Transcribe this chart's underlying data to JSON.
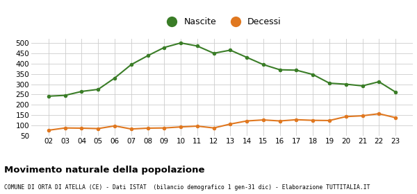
{
  "years": [
    "02",
    "03",
    "04",
    "05",
    "06",
    "07",
    "08",
    "09",
    "10",
    "11",
    "12",
    "13",
    "14",
    "15",
    "16",
    "17",
    "18",
    "19",
    "20",
    "21",
    "22",
    "23"
  ],
  "nascite": [
    242,
    246,
    265,
    275,
    330,
    395,
    438,
    478,
    500,
    485,
    450,
    465,
    430,
    395,
    370,
    368,
    347,
    305,
    300,
    292,
    312,
    262
  ],
  "decessi": [
    77,
    88,
    87,
    85,
    98,
    83,
    87,
    88,
    93,
    97,
    88,
    107,
    122,
    127,
    122,
    128,
    125,
    124,
    143,
    147,
    157,
    138
  ],
  "nascite_color": "#3a7d27",
  "decessi_color": "#e07820",
  "bg_color": "#ffffff",
  "grid_color": "#cccccc",
  "title": "Movimento naturale della popolazione",
  "subtitle": "COMUNE DI ORTA DI ATELLA (CE) - Dati ISTAT  (bilancio demografico 1 gen-31 dic) - Elaborazione TUTTITALIA.IT",
  "legend_nascite": "Nascite",
  "legend_decessi": "Decessi",
  "ylim": [
    50,
    520
  ],
  "yticks": [
    50,
    100,
    150,
    200,
    250,
    300,
    350,
    400,
    450,
    500
  ],
  "marker_size": 4,
  "line_width": 1.5
}
